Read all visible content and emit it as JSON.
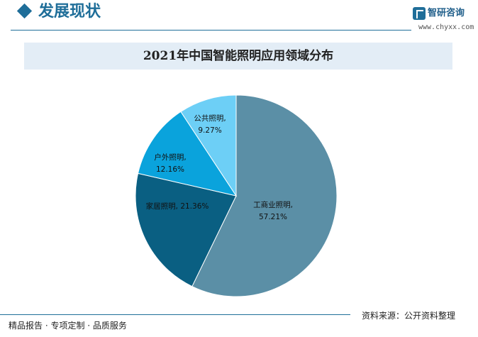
{
  "header": {
    "section_title": "发展现状",
    "logo_name": "智研咨询",
    "logo_url": "www.chyxx.com"
  },
  "footer": {
    "left_text": "精品报告 · 专项定制 · 品质服务",
    "source_text": "资料来源：公开资料整理"
  },
  "colors": {
    "brand": "#1f6e99",
    "title_band": "#e3edf6"
  },
  "chart_data": {
    "type": "pie",
    "title": "2021年中国智能照明应用领域分布",
    "slices": [
      {
        "name": "工商业照明",
        "label": "工商业照明,",
        "value": 57.21,
        "value_label": "57.21%",
        "color": "#5b8fa6"
      },
      {
        "name": "家居照明",
        "label": "家居照明,",
        "value": 21.36,
        "value_label": "21.36%",
        "color": "#0a5f82"
      },
      {
        "name": "户外照明",
        "label": "户外照明,",
        "value": 12.16,
        "value_label": "12.16%",
        "color": "#0aa3dc"
      },
      {
        "name": "公共照明",
        "label": "公共照明,",
        "value": 9.27,
        "value_label": "9.27%",
        "color": "#6dcff6"
      }
    ],
    "start": "12 o'clock",
    "direction": "clockwise",
    "legend": "none",
    "data_labels": "inside"
  }
}
